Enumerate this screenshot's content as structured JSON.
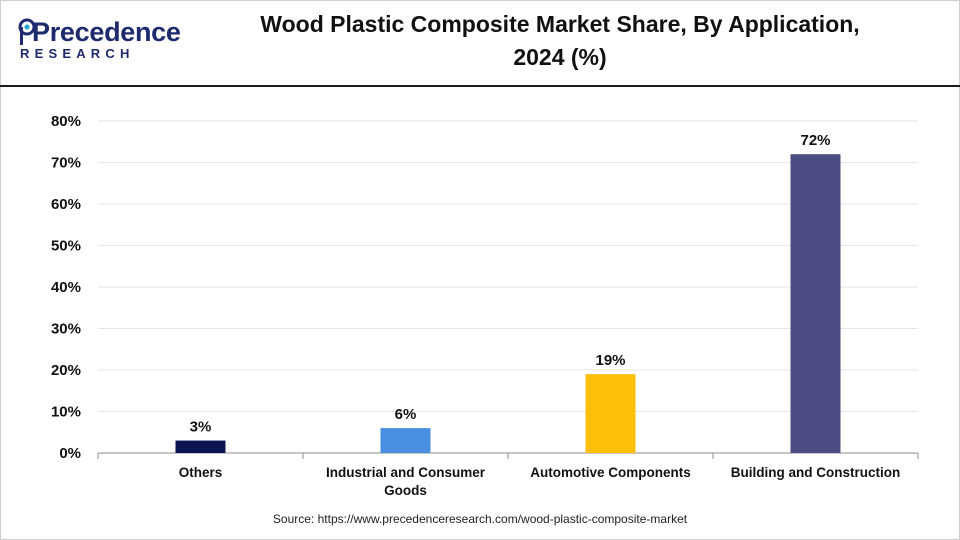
{
  "header": {
    "logo_word": "Precedence",
    "logo_sub": "RESEARCH",
    "title_line1": "Wood Plastic Composite Market Share, By Application,",
    "title_line2": "2024 (%)"
  },
  "footer": {
    "source": "Source: https://www.precedenceresearch.com/wood-plastic-composite-market"
  },
  "colors": {
    "others": "#0d1452",
    "industrial": "#4a90e2",
    "automotive": "#fdbf09",
    "building": "#4b4c82",
    "brand": "#1e2a6e",
    "logo_accent": "#1fa7c9"
  },
  "chart_data": {
    "type": "bar",
    "title": "Wood Plastic Composite Market Share, By Application, 2024 (%)",
    "categories": [
      [
        "Others"
      ],
      [
        "Industrial and Consumer",
        "Goods"
      ],
      [
        "Automotive Components"
      ],
      [
        "Building and Construction"
      ]
    ],
    "values": [
      3,
      6,
      19,
      72
    ],
    "data_labels": [
      "3%",
      "6%",
      "19%",
      "72%"
    ],
    "bar_colors": [
      "#0d1452",
      "#4a90e2",
      "#fdbf09",
      "#4b4c82"
    ],
    "yticks": [
      0,
      10,
      20,
      30,
      40,
      50,
      60,
      70,
      80
    ],
    "ytick_labels": [
      "0%",
      "10%",
      "20%",
      "30%",
      "40%",
      "50%",
      "60%",
      "70%",
      "80%"
    ],
    "ylim": [
      0,
      80
    ],
    "xlabel": "",
    "ylabel": "",
    "grid": true
  }
}
